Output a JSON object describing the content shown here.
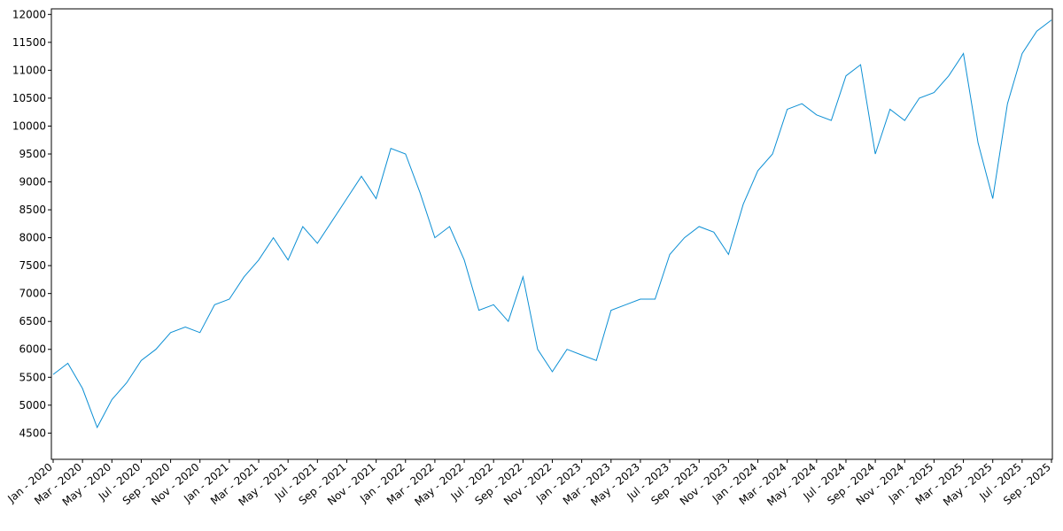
{
  "chart_data": {
    "type": "line",
    "x": [
      "2020-01",
      "2020-02",
      "2020-03",
      "2020-04",
      "2020-05",
      "2020-06",
      "2020-07",
      "2020-08",
      "2020-09",
      "2020-10",
      "2020-11",
      "2020-12",
      "2021-01",
      "2021-02",
      "2021-03",
      "2021-04",
      "2021-05",
      "2021-06",
      "2021-07",
      "2021-08",
      "2021-09",
      "2021-10",
      "2021-11",
      "2021-12",
      "2022-01",
      "2022-02",
      "2022-03",
      "2022-04",
      "2022-05",
      "2022-06",
      "2022-07",
      "2022-08",
      "2022-09",
      "2022-10",
      "2022-11",
      "2022-12",
      "2023-01",
      "2023-02",
      "2023-03",
      "2023-04",
      "2023-05",
      "2023-06",
      "2023-07",
      "2023-08",
      "2023-09",
      "2023-10",
      "2023-11",
      "2023-12",
      "2024-01",
      "2024-02",
      "2024-03",
      "2024-04",
      "2024-05",
      "2024-06",
      "2024-07",
      "2024-08",
      "2024-09",
      "2024-10",
      "2024-11",
      "2024-12",
      "2025-01",
      "2025-02",
      "2025-03",
      "2025-04",
      "2025-05",
      "2025-06",
      "2025-07",
      "2025-08",
      "2025-09"
    ],
    "series": [
      {
        "color": "#0c8fd4",
        "values": [
          5550,
          5750,
          5300,
          4600,
          5100,
          5400,
          5800,
          6000,
          6300,
          6400,
          6300,
          6800,
          6900,
          7300,
          7600,
          8000,
          7600,
          8200,
          7900,
          8300,
          8700,
          9100,
          8700,
          9600,
          9500,
          8800,
          8000,
          8200,
          7600,
          6700,
          6800,
          6500,
          7300,
          6000,
          5600,
          6000,
          5900,
          5800,
          6700,
          6800,
          6900,
          6900,
          7700,
          8000,
          8200,
          8100,
          7700,
          8600,
          9200,
          9500,
          10300,
          10400,
          10200,
          10100,
          10900,
          11100,
          9500,
          10300,
          10100,
          10500,
          10600,
          10900,
          11300,
          9700,
          8700,
          10400,
          11300,
          11700,
          11900
        ]
      }
    ],
    "xlim": [
      "2020-01",
      "2025-09"
    ],
    "xticks": [
      {
        "value": "2020-01",
        "label": "Jan - 2020"
      },
      {
        "value": "2020-03",
        "label": "Mar - 2020"
      },
      {
        "value": "2020-05",
        "label": "May - 2020"
      },
      {
        "value": "2020-07",
        "label": "Jul - 2020"
      },
      {
        "value": "2020-09",
        "label": "Sep - 2020"
      },
      {
        "value": "2020-11",
        "label": "Nov - 2020"
      },
      {
        "value": "2021-01",
        "label": "Jan - 2021"
      },
      {
        "value": "2021-03",
        "label": "Mar - 2021"
      },
      {
        "value": "2021-05",
        "label": "May - 2021"
      },
      {
        "value": "2021-07",
        "label": "Jul - 2021"
      },
      {
        "value": "2021-09",
        "label": "Sep - 2021"
      },
      {
        "value": "2021-11",
        "label": "Nov - 2021"
      },
      {
        "value": "2022-01",
        "label": "Jan - 2022"
      },
      {
        "value": "2022-03",
        "label": "Mar - 2022"
      },
      {
        "value": "2022-05",
        "label": "May - 2022"
      },
      {
        "value": "2022-07",
        "label": "Jul - 2022"
      },
      {
        "value": "2022-09",
        "label": "Sep - 2022"
      },
      {
        "value": "2022-11",
        "label": "Nov - 2022"
      },
      {
        "value": "2023-01",
        "label": "Jan - 2023"
      },
      {
        "value": "2023-03",
        "label": "Mar - 2023"
      },
      {
        "value": "2023-05",
        "label": "May - 2023"
      },
      {
        "value": "2023-07",
        "label": "Jul - 2023"
      },
      {
        "value": "2023-09",
        "label": "Sep - 2023"
      },
      {
        "value": "2023-11",
        "label": "Nov - 2023"
      },
      {
        "value": "2024-01",
        "label": "Jan - 2024"
      },
      {
        "value": "2024-03",
        "label": "Mar - 2024"
      },
      {
        "value": "2024-05",
        "label": "May - 2024"
      },
      {
        "value": "2024-07",
        "label": "Jul - 2024"
      },
      {
        "value": "2024-09",
        "label": "Sep - 2024"
      },
      {
        "value": "2024-11",
        "label": "Nov - 2024"
      },
      {
        "value": "2025-01",
        "label": "Jan - 2025"
      },
      {
        "value": "2025-03",
        "label": "Mar - 2025"
      },
      {
        "value": "2025-05",
        "label": "May - 2025"
      },
      {
        "value": "2025-07",
        "label": "Jul - 2025"
      },
      {
        "value": "2025-09",
        "label": "Sep - 2025"
      }
    ],
    "ylim": [
      4030,
      12100
    ],
    "yticks": [
      4500,
      5000,
      5500,
      6000,
      6500,
      7000,
      7500,
      8000,
      8500,
      9000,
      9500,
      10000,
      10500,
      11000,
      11500,
      12000
    ]
  }
}
